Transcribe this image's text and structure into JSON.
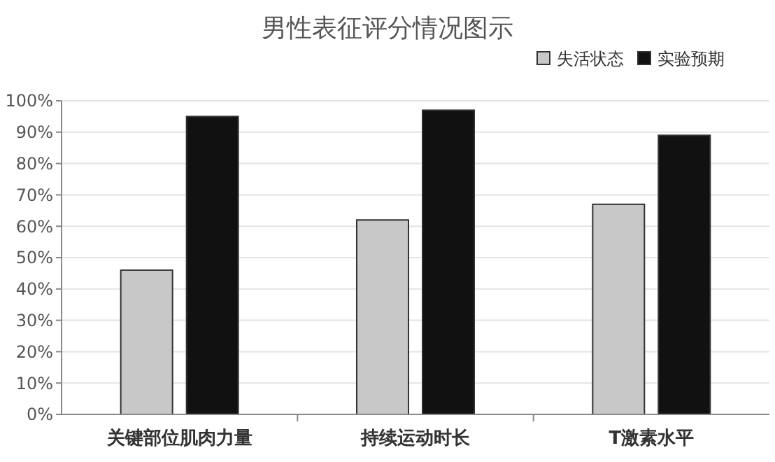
{
  "chart_data": {
    "type": "bar",
    "title": "男性表征评分情况图示",
    "categories": [
      "关键部位肌肉力量",
      "持续运动时长",
      "T激素水平"
    ],
    "series": [
      {
        "name": "失活状态",
        "color": "#c8c8c8",
        "values": [
          46,
          62,
          67
        ]
      },
      {
        "name": "实验预期",
        "color": "#111111",
        "values": [
          95,
          97,
          89
        ]
      }
    ],
    "ylim": [
      0,
      100
    ],
    "yticks": [
      {
        "value": 0,
        "label": "0%"
      },
      {
        "value": 10,
        "label": "10%"
      },
      {
        "value": 20,
        "label": "20%"
      },
      {
        "value": 30,
        "label": "30%"
      },
      {
        "value": 40,
        "label": "40%"
      },
      {
        "value": 50,
        "label": "50%"
      },
      {
        "value": 60,
        "label": "60%"
      },
      {
        "value": 70,
        "label": "70%"
      },
      {
        "value": 80,
        "label": "80%"
      },
      {
        "value": 90,
        "label": "90%"
      },
      {
        "value": 100,
        "label": "100%"
      }
    ],
    "grid": "y",
    "legend": "top right"
  }
}
